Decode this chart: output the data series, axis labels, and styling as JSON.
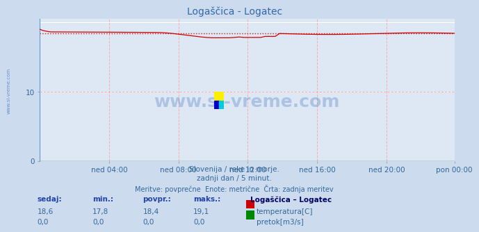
{
  "title": "Logaščica - Logatec",
  "bg_color": "#ccdcee",
  "plot_bg_color": "#dde8f4",
  "grid_color_major": "#ffffff",
  "grid_color_minor": "#ffaaaa",
  "temp_color": "#cc0000",
  "flow_color": "#008800",
  "avg_line_color": "#cc0000",
  "temp_avg": 18.4,
  "temp_min": 17.8,
  "temp_max": 19.1,
  "temp_current": 18.6,
  "ylim": [
    0,
    20.5
  ],
  "yticks": [
    0,
    10
  ],
  "xlabel_ticks": [
    "ned 04:00",
    "ned 08:00",
    "ned 12:00",
    "ned 16:00",
    "ned 20:00",
    "pon 00:00"
  ],
  "n_points": 288,
  "footer_line1": "Slovenija / reke in morje.",
  "footer_line2": "zadnji dan / 5 minut.",
  "footer_line3": "Meritve: povprečne  Enote: metrične  Črta: zadnja meritev",
  "table_headers": [
    "sedaj:",
    "min.:",
    "povpr.:",
    "maks.:"
  ],
  "table_legend": "Logaščica – Logatec",
  "table_row1": [
    "18,6",
    "17,8",
    "18,4",
    "19,1"
  ],
  "table_row2": [
    "0,0",
    "0,0",
    "0,0",
    "0,0"
  ],
  "label_temp": "temperatura[C]",
  "label_flow": "pretok[m3/s]",
  "watermark": "www.si-vreme.com",
  "watermark_color": "#3366bb",
  "watermark_alpha": 0.28,
  "sidebar_text": "www.si-vreme.com",
  "sidebar_color": "#3366bb",
  "text_color": "#336699",
  "bold_color": "#2244aa",
  "title_color": "#3366aa"
}
